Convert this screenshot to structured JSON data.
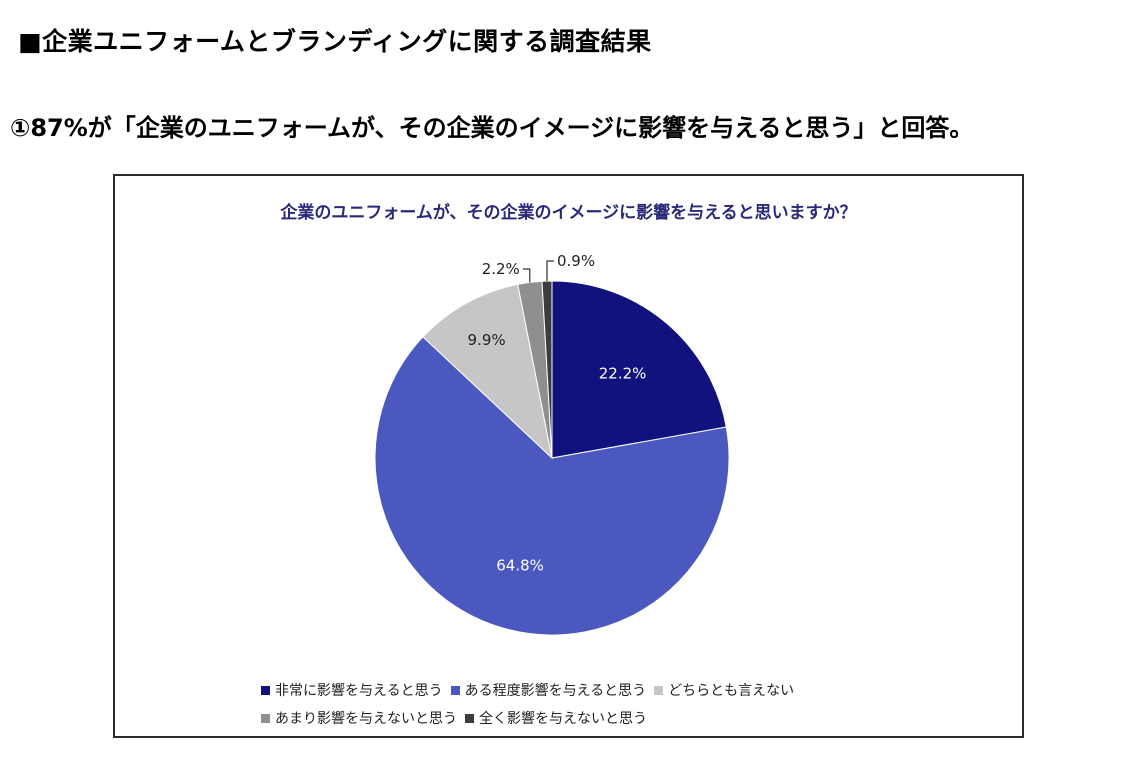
{
  "page": {
    "title": "■企業ユニフォームとブランディングに関する調査結果",
    "subtitle": "①87%が「企業のユニフォームが、その企業のイメージに影響を与えると思う」と回答。"
  },
  "chart_data": {
    "type": "pie",
    "title": "企業のユニフォームが、その企業のイメージに影響を与えると思いますか？",
    "categories": [
      "非常に影響を与えると思う",
      "ある程度影響を与えると思う",
      "どちらとも言えない",
      "あまり影響を与えないと思う",
      "全く影響を与えないと思う"
    ],
    "values": [
      22.2,
      64.8,
      9.9,
      2.2,
      0.9
    ],
    "value_labels": [
      "22.2%",
      "64.8%",
      "9.9%",
      "2.2%",
      "0.9%"
    ],
    "colors": [
      "#12127e",
      "#4a58c0",
      "#c6c6c6",
      "#8f8f8f",
      "#3c3c3c"
    ],
    "start_angle": "12 o'clock",
    "direction": "clockwise",
    "legend_position": "bottom"
  }
}
